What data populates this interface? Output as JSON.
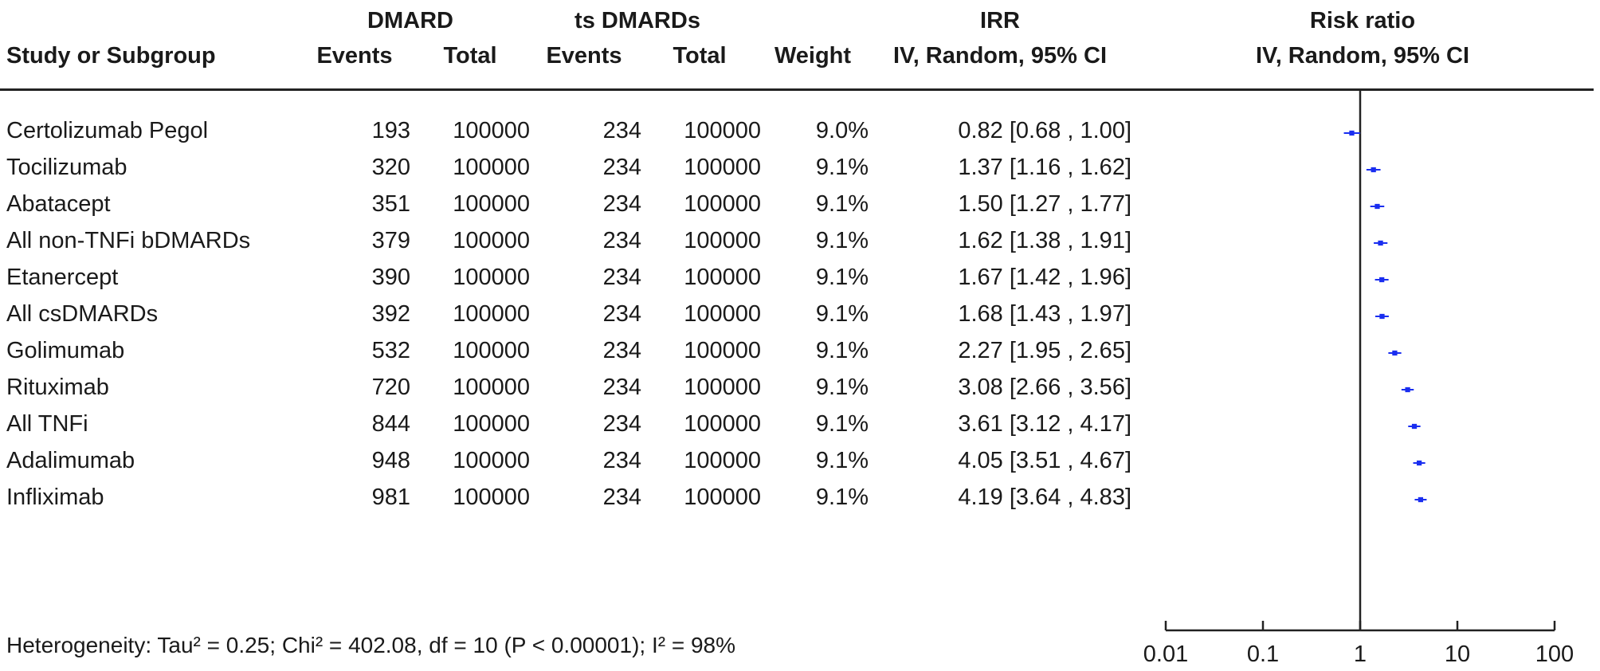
{
  "header": {
    "group1": "DMARD",
    "group2": "ts DMARDs",
    "irr_top": "IRR",
    "rr_top": "Risk ratio",
    "study_col": "Study or Subgroup",
    "events1": "Events",
    "total1": "Total",
    "events2": "Events",
    "total2": "Total",
    "weight": "Weight",
    "irr_method": "IV, Random, 95% CI",
    "rr_method": "IV, Random, 95% CI"
  },
  "rows": [
    {
      "study": "Certolizumab Pegol",
      "events1": "193",
      "total1": "100000",
      "events2": "234",
      "total2": "100000",
      "weight": "9.0%",
      "ci": "0.82 [0.68 , 1.00]"
    },
    {
      "study": "Tocilizumab",
      "events1": "320",
      "total1": "100000",
      "events2": "234",
      "total2": "100000",
      "weight": "9.1%",
      "ci": "1.37 [1.16 , 1.62]"
    },
    {
      "study": "Abatacept",
      "events1": "351",
      "total1": "100000",
      "events2": "234",
      "total2": "100000",
      "weight": "9.1%",
      "ci": "1.50 [1.27 , 1.77]"
    },
    {
      "study": "All non-TNFi bDMARDs",
      "events1": "379",
      "total1": "100000",
      "events2": "234",
      "total2": "100000",
      "weight": "9.1%",
      "ci": "1.62 [1.38 , 1.91]"
    },
    {
      "study": "Etanercept",
      "events1": "390",
      "total1": "100000",
      "events2": "234",
      "total2": "100000",
      "weight": "9.1%",
      "ci": "1.67 [1.42 , 1.96]"
    },
    {
      "study": "All csDMARDs",
      "events1": "392",
      "total1": "100000",
      "events2": "234",
      "total2": "100000",
      "weight": "9.1%",
      "ci": "1.68 [1.43 , 1.97]"
    },
    {
      "study": "Golimumab",
      "events1": "532",
      "total1": "100000",
      "events2": "234",
      "total2": "100000",
      "weight": "9.1%",
      "ci": "2.27 [1.95 , 2.65]"
    },
    {
      "study": "Rituximab",
      "events1": "720",
      "total1": "100000",
      "events2": "234",
      "total2": "100000",
      "weight": "9.1%",
      "ci": "3.08 [2.66 , 3.56]"
    },
    {
      "study": "All TNFi",
      "events1": "844",
      "total1": "100000",
      "events2": "234",
      "total2": "100000",
      "weight": "9.1%",
      "ci": "3.61 [3.12 , 4.17]"
    },
    {
      "study": "Adalimumab",
      "events1": "948",
      "total1": "100000",
      "events2": "234",
      "total2": "100000",
      "weight": "9.1%",
      "ci": "4.05 [3.51 , 4.67]"
    },
    {
      "study": "Infliximab",
      "events1": "981",
      "total1": "100000",
      "events2": "234",
      "total2": "100000",
      "weight": "9.1%",
      "ci": "4.19 [3.64 , 4.83]"
    }
  ],
  "footer": {
    "heterogeneity": "Heterogeneity: Tau² = 0.25; Chi² = 402.08, df = 10 (P < 0.00001); I² = 98%"
  },
  "chart_data": {
    "type": "forest",
    "x_scale": "log",
    "xlim": [
      0.01,
      100
    ],
    "x_ticks": [
      0.01,
      0.1,
      1,
      10,
      100
    ],
    "x_tick_labels": [
      "0.01",
      "0.1",
      "1",
      "10",
      "100"
    ],
    "reference_line": 1,
    "marker_color": "#1a2ef0",
    "line_color": "#222222",
    "studies": [
      {
        "label": "Certolizumab Pegol",
        "estimate": 0.82,
        "ci_low": 0.68,
        "ci_high": 1.0,
        "weight": 9.0
      },
      {
        "label": "Tocilizumab",
        "estimate": 1.37,
        "ci_low": 1.16,
        "ci_high": 1.62,
        "weight": 9.1
      },
      {
        "label": "Abatacept",
        "estimate": 1.5,
        "ci_low": 1.27,
        "ci_high": 1.77,
        "weight": 9.1
      },
      {
        "label": "All non-TNFi bDMARDs",
        "estimate": 1.62,
        "ci_low": 1.38,
        "ci_high": 1.91,
        "weight": 9.1
      },
      {
        "label": "Etanercept",
        "estimate": 1.67,
        "ci_low": 1.42,
        "ci_high": 1.96,
        "weight": 9.1
      },
      {
        "label": "All csDMARDs",
        "estimate": 1.68,
        "ci_low": 1.43,
        "ci_high": 1.97,
        "weight": 9.1
      },
      {
        "label": "Golimumab",
        "estimate": 2.27,
        "ci_low": 1.95,
        "ci_high": 2.65,
        "weight": 9.1
      },
      {
        "label": "Rituximab",
        "estimate": 3.08,
        "ci_low": 2.66,
        "ci_high": 3.56,
        "weight": 9.1
      },
      {
        "label": "All TNFi",
        "estimate": 3.61,
        "ci_low": 3.12,
        "ci_high": 4.17,
        "weight": 9.1
      },
      {
        "label": "Adalimumab",
        "estimate": 4.05,
        "ci_low": 3.51,
        "ci_high": 4.67,
        "weight": 9.1
      },
      {
        "label": "Infliximab",
        "estimate": 4.19,
        "ci_low": 3.64,
        "ci_high": 4.83,
        "weight": 9.1
      }
    ]
  }
}
